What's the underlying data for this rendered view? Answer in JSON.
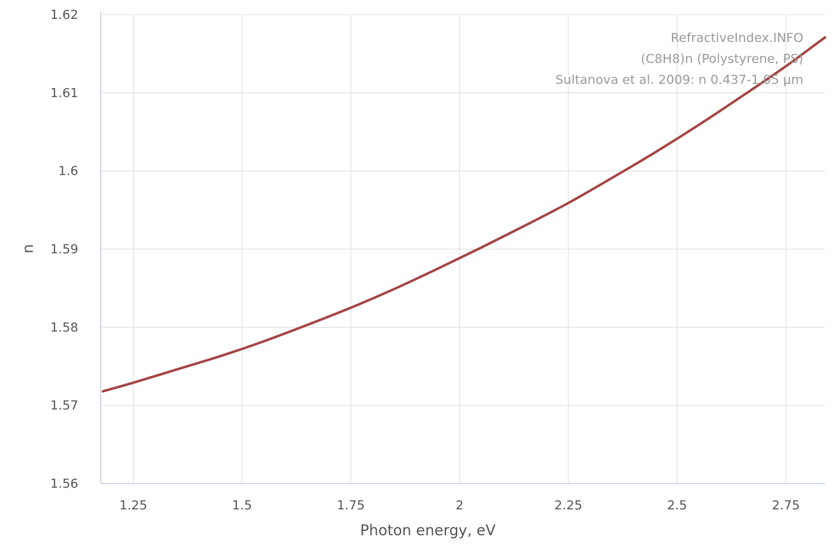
{
  "chart_data": {
    "type": "line",
    "xlabel": "Photon energy, eV",
    "ylabel": "n",
    "xlim": [
      1.175,
      2.84
    ],
    "ylim": [
      1.56,
      1.62
    ],
    "x_ticks": [
      1.25,
      1.5,
      1.75,
      2,
      2.25,
      2.5,
      2.75
    ],
    "x_tick_labels": [
      "1.25",
      "1.5",
      "1.75",
      "2",
      "2.25",
      "2.5",
      "2.75"
    ],
    "y_ticks": [
      1.56,
      1.57,
      1.58,
      1.59,
      1.6,
      1.61,
      1.62
    ],
    "y_tick_labels": [
      "1.56",
      "1.57",
      "1.58",
      "1.59",
      "1.6",
      "1.61",
      "1.62"
    ],
    "grid": true,
    "annotations": [
      "RefractiveIndex.INFO",
      "(C8H8)n (Polystyrene, PS)",
      "Sultanova et al. 2009: n 0.437-1.05 µm"
    ],
    "series": [
      {
        "color": "#a54343",
        "x": [
          1.18,
          1.25,
          1.35,
          1.45,
          1.55,
          1.65,
          1.75,
          1.85,
          1.95,
          2.05,
          2.15,
          2.25,
          2.35,
          2.45,
          2.55,
          2.65,
          2.75,
          2.84
        ],
        "y": [
          1.5718,
          1.5729,
          1.5746,
          1.5763,
          1.5782,
          1.5803,
          1.5825,
          1.5849,
          1.5875,
          1.5902,
          1.593,
          1.5959,
          1.5991,
          1.6024,
          1.6059,
          1.6096,
          1.6134,
          1.6171
        ]
      }
    ]
  }
}
